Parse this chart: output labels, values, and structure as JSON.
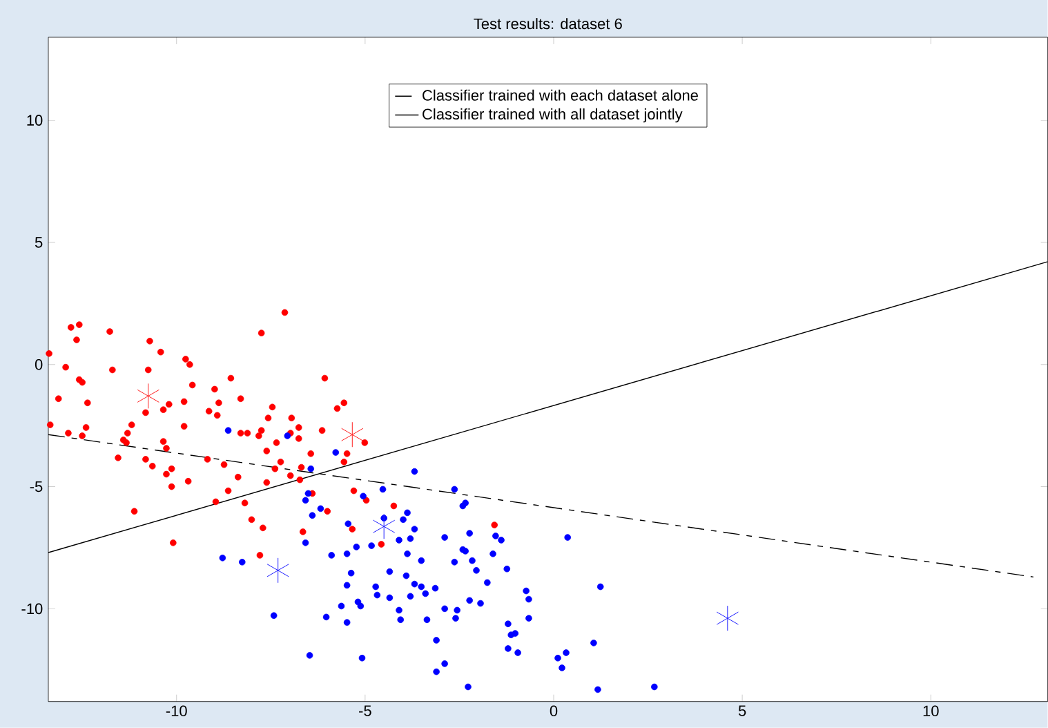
{
  "chart_data": {
    "type": "scatter",
    "title": "Test results: dataset 6",
    "marker": "circle",
    "xlim": [
      -13.4,
      13.1
    ],
    "ylim": [
      -13.8,
      13.4
    ],
    "xticks": [
      -10,
      -5,
      0,
      5,
      10
    ],
    "yticks": [
      -10,
      -5,
      0,
      5,
      10
    ],
    "legend": "top",
    "series": [
      {
        "name": "Classifier trained with each dataset alone",
        "type": "line",
        "color": "#000000",
        "line_style": "dashed",
        "marker": "none",
        "x": [
          -13.4,
          12.72
        ],
        "values": [
          -2.87,
          -8.7
        ]
      },
      {
        "name": "Classifier trained with all dataset jointly",
        "type": "line",
        "color": "#000000",
        "line_style": "solid",
        "marker": "none",
        "x": [
          -13.4,
          13.1
        ],
        "values": [
          -7.7,
          4.21
        ]
      },
      {
        "color": "#ff0000",
        "x": [
          -13.38,
          -12.8,
          -12.58,
          -12.65,
          -11.77,
          -10.71,
          -7.13,
          -7.75,
          -10.42,
          -9.76,
          -9.65,
          -12.94,
          -11.7,
          -10.75,
          -12.58,
          -12.5,
          -9.58,
          -8.56,
          -8.99,
          -6.07,
          -13.13,
          -12.36,
          -9.8,
          -8.88,
          -8.3,
          -10.2,
          -10.35,
          -10.82,
          -9.14,
          -8.92,
          -7.46,
          -5.56,
          -5.74,
          -13.35,
          -12.4,
          -11.19,
          -9.8,
          -7.57,
          -6.95,
          -6.76,
          -12.87,
          -12.5,
          -11.3,
          -8.3,
          -8.12,
          -7.82,
          -7.75,
          -6.98,
          -6.14,
          -11.41,
          -11.33,
          -10.35,
          -7.35,
          -6.76,
          -5.01,
          -10.27,
          -7.61,
          -6.44,
          -11.55,
          -10.82,
          -9.18,
          -8.74,
          -7.24,
          -5.56,
          -10.64,
          -10.13,
          -7.39,
          -6.69,
          -10.27,
          -8.37,
          -6.98,
          -6.73,
          -9.69,
          -7.61,
          -10.13,
          -8.63,
          -6.4,
          -5.3,
          -8.96,
          -8.19,
          -4.97,
          -11.12,
          -6.0,
          -8.01,
          -7.71,
          -6.65,
          -10.09,
          -5.34,
          -4.57,
          -7.79,
          -5.48,
          -4.24,
          -1.57
        ],
        "values": [
          0.45,
          1.52,
          1.63,
          1.01,
          1.35,
          0.96,
          2.13,
          1.29,
          0.51,
          0.22,
          0.0,
          -0.11,
          -0.22,
          -0.22,
          -0.62,
          -0.73,
          -0.84,
          -0.56,
          -1.01,
          -0.56,
          -1.4,
          -1.57,
          -1.52,
          -1.57,
          -1.4,
          -1.63,
          -1.85,
          -1.97,
          -1.91,
          -2.08,
          -1.74,
          -1.57,
          -1.8,
          -2.47,
          -2.58,
          -2.47,
          -2.53,
          -2.19,
          -2.19,
          -2.58,
          -2.81,
          -2.92,
          -2.81,
          -2.81,
          -2.81,
          -2.92,
          -2.7,
          -2.81,
          -2.7,
          -3.09,
          -3.2,
          -3.15,
          -3.2,
          -3.03,
          -3.2,
          -3.43,
          -3.54,
          -3.65,
          -3.82,
          -3.88,
          -3.88,
          -4.1,
          -3.99,
          -3.99,
          -4.16,
          -4.27,
          -4.27,
          -4.21,
          -4.49,
          -4.61,
          -4.55,
          -4.72,
          -4.78,
          -4.83,
          -5.0,
          -5.17,
          -5.28,
          -5.17,
          -5.62,
          -5.67,
          -5.56,
          -6.01,
          -6.01,
          -6.35,
          -6.69,
          -6.85,
          -7.3,
          -6.74,
          -7.36,
          -7.81,
          -3.65,
          -5.79,
          -6.57
        ]
      },
      {
        "color": "#0000ff",
        "x": [
          -8.63,
          -7.06,
          -5.78,
          -6.44,
          -3.69,
          -6.51,
          -6.58,
          -5.05,
          -4.53,
          -2.63,
          -2.41,
          -2.34,
          -6.18,
          -6.4,
          -3.88,
          -3.99,
          -5.45,
          -4.5,
          -3.69,
          -4.1,
          -3.8,
          -2.89,
          -2.23,
          -1.54,
          -1.39,
          -6.58,
          -4.83,
          -5.23,
          -5.89,
          -5.48,
          -3.88,
          -3.51,
          -2.41,
          -2.34,
          -2.16,
          -1.61,
          -2.63,
          -8.78,
          -8.26,
          -2.05,
          -1.24,
          -5.37,
          -4.35,
          -3.91,
          -5.48,
          -4.72,
          -3.69,
          -3.51,
          -3.14,
          -1.76,
          -4.68,
          -4.35,
          -3.8,
          -3.4,
          -2.23,
          -1.94,
          -0.73,
          -0.66,
          -5.63,
          -5.19,
          -5.12,
          -4.1,
          -2.89,
          -2.56,
          -7.42,
          -6.03,
          -5.48,
          -4.06,
          -3.36,
          -2.6,
          -0.66,
          -1.21,
          -1.13,
          -1.02,
          -3.11,
          -1.21,
          -0.95,
          -6.47,
          -5.08,
          -2.89,
          -3.11,
          -2.27,
          0.37,
          1.24,
          1.06,
          0.11,
          0.33,
          0.22,
          1.17,
          2.67
        ],
        "values": [
          -2.7,
          -2.92,
          -3.6,
          -4.27,
          -4.38,
          -5.28,
          -5.56,
          -5.39,
          -5.11,
          -5.11,
          -5.79,
          -5.67,
          -5.9,
          -6.18,
          -6.07,
          -6.35,
          -6.52,
          -6.29,
          -6.74,
          -7.19,
          -7.13,
          -7.08,
          -6.91,
          -7.02,
          -7.19,
          -7.3,
          -7.42,
          -7.47,
          -7.81,
          -7.75,
          -7.75,
          -8.03,
          -7.58,
          -7.64,
          -8.03,
          -7.75,
          -8.09,
          -7.92,
          -8.09,
          -8.43,
          -8.37,
          -8.54,
          -8.48,
          -8.65,
          -9.04,
          -9.1,
          -8.99,
          -9.1,
          -9.16,
          -8.93,
          -9.44,
          -9.55,
          -9.49,
          -9.38,
          -9.66,
          -9.78,
          -9.27,
          -9.61,
          -9.89,
          -9.72,
          -9.89,
          -10.06,
          -10.0,
          -10.06,
          -10.28,
          -10.34,
          -10.56,
          -10.45,
          -10.45,
          -10.39,
          -10.39,
          -10.62,
          -11.07,
          -11.01,
          -11.29,
          -11.63,
          -11.8,
          -11.91,
          -12.02,
          -12.25,
          -12.58,
          -13.2,
          -7.08,
          -9.1,
          -11.4,
          -12.02,
          -11.8,
          -12.42,
          -13.31,
          -13.2
        ]
      },
      {
        "color": "#ff2020",
        "marker": "cross",
        "x": [
          -10.75,
          -5.34
        ],
        "values": [
          -1.29,
          -2.87
        ]
      },
      {
        "color": "#2020ff",
        "marker": "cross",
        "x": [
          -7.31,
          -4.5,
          4.61
        ],
        "values": [
          -8.43,
          -6.63,
          -10.39
        ]
      }
    ]
  }
}
